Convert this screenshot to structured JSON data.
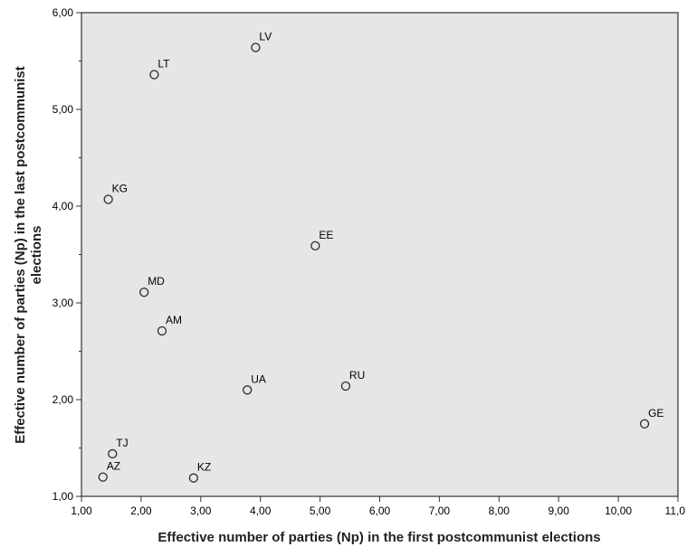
{
  "chart_data": {
    "type": "scatter",
    "xlabel": "Effective number of parties (Np) in the first postcommunist elections",
    "ylabel_lines": [
      "Effective number of parties (Np) in the last postcommunist",
      "elections"
    ],
    "xlim": [
      1,
      11
    ],
    "ylim": [
      1,
      6
    ],
    "x_ticks": [
      "1,00",
      "2,00",
      "3,00",
      "4,00",
      "5,00",
      "6,00",
      "7,00",
      "8,00",
      "9,00",
      "10,00",
      "11,0"
    ],
    "y_ticks": [
      "1,00",
      "2,00",
      "3,00",
      "4,00",
      "5,00",
      "6,00"
    ],
    "grid": false,
    "points": [
      {
        "label": "LV",
        "x": 3.92,
        "y": 5.64
      },
      {
        "label": "LT",
        "x": 2.22,
        "y": 5.36
      },
      {
        "label": "KG",
        "x": 1.45,
        "y": 4.07
      },
      {
        "label": "EE",
        "x": 4.92,
        "y": 3.59
      },
      {
        "label": "MD",
        "x": 2.05,
        "y": 3.11
      },
      {
        "label": "AM",
        "x": 2.35,
        "y": 2.71
      },
      {
        "label": "UA",
        "x": 3.78,
        "y": 2.1
      },
      {
        "label": "RU",
        "x": 5.43,
        "y": 2.14
      },
      {
        "label": "GE",
        "x": 10.44,
        "y": 1.75
      },
      {
        "label": "TJ",
        "x": 1.52,
        "y": 1.44
      },
      {
        "label": "AZ",
        "x": 1.36,
        "y": 1.2
      },
      {
        "label": "KZ",
        "x": 2.88,
        "y": 1.19
      }
    ],
    "colors": {
      "plot_bg": "#e6e6e6",
      "marker_stroke": "#2b2b2b",
      "axis": "#333333"
    }
  }
}
